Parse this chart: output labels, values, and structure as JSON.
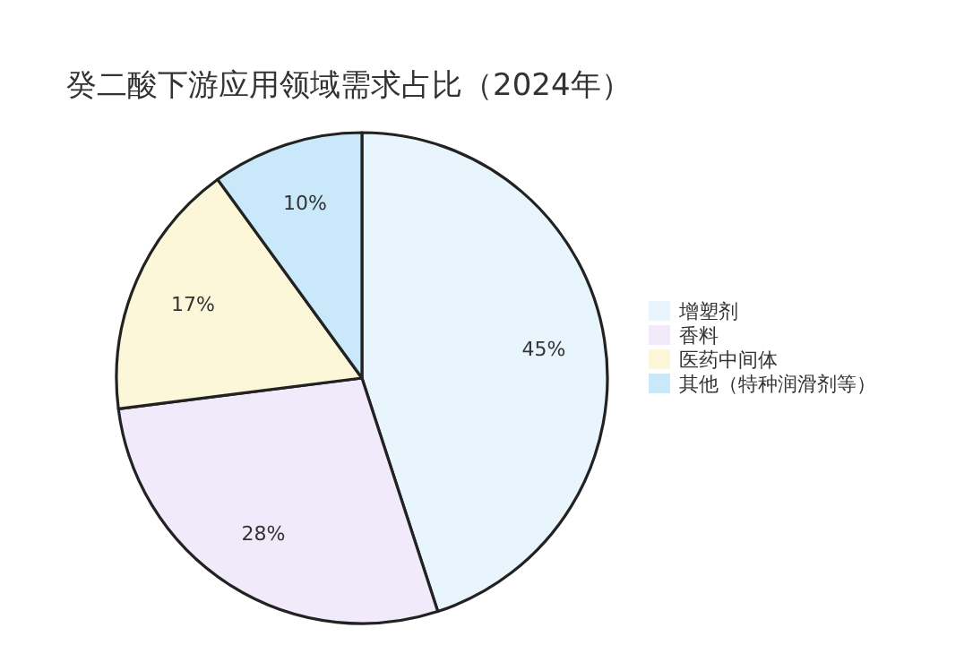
{
  "chart_data": {
    "type": "pie",
    "title": "癸二酸下游应用领域需求占比（2024年）",
    "categories": [
      "增塑剂",
      "香料",
      "医药中间体",
      "其他（特种润滑剂等）"
    ],
    "values": [
      45,
      28,
      17,
      10
    ],
    "colors": [
      "#e9f5fd",
      "#f0eafb",
      "#fdf7da",
      "#c9e9fb"
    ],
    "value_labels": [
      "45%",
      "28%",
      "17%",
      "10%"
    ],
    "legend": "right"
  }
}
